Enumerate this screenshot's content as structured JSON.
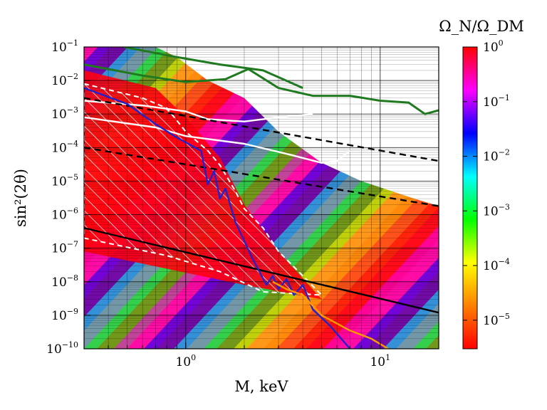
{
  "chart_data": {
    "type": "heatmap",
    "title": "",
    "xlabel": "M, keV",
    "ylabel": "sin²(2θ)",
    "xscale": "log",
    "yscale": "log",
    "xlim": [
      0.3,
      20
    ],
    "ylim": [
      1e-10,
      0.1
    ],
    "grid": true,
    "x_ticks": [
      {
        "value": 1,
        "base": "10",
        "exp": "0"
      },
      {
        "value": 10,
        "base": "10",
        "exp": "1"
      }
    ],
    "y_ticks": [
      {
        "value": 0.1,
        "base": "10",
        "exp": "−1"
      },
      {
        "value": 0.01,
        "base": "10",
        "exp": "−2"
      },
      {
        "value": 0.001,
        "base": "10",
        "exp": "−3"
      },
      {
        "value": 0.0001,
        "base": "10",
        "exp": "−4"
      },
      {
        "value": 1e-05,
        "base": "10",
        "exp": "−5"
      },
      {
        "value": 1e-06,
        "base": "10",
        "exp": "−6"
      },
      {
        "value": 1e-07,
        "base": "10",
        "exp": "−7"
      },
      {
        "value": 1e-08,
        "base": "10",
        "exp": "−8"
      },
      {
        "value": 1e-09,
        "base": "10",
        "exp": "−9"
      },
      {
        "value": 1e-10,
        "base": "10",
        "exp": "−10"
      }
    ],
    "colorbar": {
      "title": "Ω_N/Ω_DM",
      "scale": "log",
      "range": [
        3e-06,
        1
      ],
      "colormap": [
        "#ff0000",
        "#ff8000",
        "#ffff00",
        "#00ff00",
        "#00ffff",
        "#0000ff",
        "#ff00ff",
        "#ff0000"
      ],
      "ticks": [
        {
          "value": 1,
          "base": "10",
          "exp": "0"
        },
        {
          "value": 0.1,
          "base": "10",
          "exp": "−1"
        },
        {
          "value": 0.01,
          "base": "10",
          "exp": "−2"
        },
        {
          "value": 0.001,
          "base": "10",
          "exp": "−3"
        },
        {
          "value": 0.0001,
          "base": "10",
          "exp": "−4"
        },
        {
          "value": 1e-05,
          "base": "10",
          "exp": "−5"
        }
      ]
    },
    "colors": {
      "dark_green": "#1f7a1f",
      "blue": "#2222cc",
      "orange": "#ff9900",
      "white": "#ffffff",
      "black": "#000000"
    },
    "curves": [
      {
        "id": "green-upper",
        "style": "solid",
        "color": "dark_green",
        "points": [
          [
            0.48,
            0.1
          ],
          [
            0.9,
            0.05
          ],
          [
            1.5,
            0.03
          ],
          [
            2.5,
            0.02
          ],
          [
            4,
            0.006
          ]
        ]
      },
      {
        "id": "green-lower",
        "style": "solid",
        "color": "dark_green",
        "points": [
          [
            0.3,
            0.03
          ],
          [
            0.6,
            0.014
          ],
          [
            1,
            0.009
          ],
          [
            1.6,
            0.011
          ],
          [
            2.1,
            0.022
          ],
          [
            3,
            0.006
          ],
          [
            4.5,
            0.0035
          ],
          [
            7,
            0.0035
          ],
          [
            10,
            0.0025
          ],
          [
            14,
            0.0022
          ],
          [
            17,
            0.001
          ],
          [
            20,
            0.0013
          ]
        ]
      },
      {
        "id": "white-upper",
        "style": "solid",
        "color": "white",
        "points": [
          [
            0.3,
            0.0025
          ],
          [
            0.6,
            0.0018
          ],
          [
            1,
            0.0012
          ],
          [
            1.3,
            0.0007
          ],
          [
            2,
            0.0006
          ],
          [
            3,
            0.0008
          ],
          [
            4.5,
            0.001
          ]
        ]
      },
      {
        "id": "white-lower",
        "style": "solid",
        "color": "white",
        "points": [
          [
            0.3,
            0.0008
          ],
          [
            0.7,
            0.0004
          ],
          [
            1,
            0.00022
          ],
          [
            2,
            0.00013
          ],
          [
            3.5,
            6e-05
          ],
          [
            5,
            3.5e-05
          ],
          [
            6,
            4e-05
          ],
          [
            7,
            8e-05
          ]
        ]
      },
      {
        "id": "dashed-upper",
        "style": "dashed",
        "color": "black",
        "points": [
          [
            0.3,
            0.003
          ],
          [
            20,
            4e-05
          ]
        ]
      },
      {
        "id": "dashed-lower",
        "style": "dashed",
        "color": "black",
        "points": [
          [
            0.3,
            0.0001
          ],
          [
            20,
            1.8e-06
          ]
        ]
      },
      {
        "id": "black-solid",
        "style": "solid",
        "color": "black",
        "points": [
          [
            0.3,
            4e-07
          ],
          [
            20,
            1.2e-09
          ]
        ]
      },
      {
        "id": "blue-curve",
        "style": "solid",
        "color": "blue",
        "points": [
          [
            0.3,
            0.006
          ],
          [
            0.5,
            0.002
          ],
          [
            0.7,
            0.0005
          ],
          [
            0.9,
            0.0002
          ],
          [
            1.2,
            8e-05
          ],
          [
            1.3,
            8e-06
          ],
          [
            1.4,
            2e-05
          ],
          [
            1.5,
            3e-06
          ],
          [
            1.6,
            6e-06
          ],
          [
            1.8,
            6e-07
          ],
          [
            2.2,
            5e-08
          ],
          [
            2.6,
            8e-09
          ],
          [
            2.8,
            1.5e-08
          ],
          [
            3,
            6e-09
          ],
          [
            3.3,
            1.2e-08
          ],
          [
            3.6,
            4e-09
          ],
          [
            4,
            8e-09
          ],
          [
            4.5,
            1.5e-09
          ],
          [
            5.5,
            5e-10
          ],
          [
            7,
            1e-10
          ]
        ]
      },
      {
        "id": "orange-curve",
        "style": "solid",
        "color": "orange",
        "points": [
          [
            2.8,
            1e-08
          ],
          [
            3.3,
            6e-09
          ],
          [
            4,
            4e-09
          ],
          [
            5,
            1e-09
          ],
          [
            7,
            3.5e-10
          ],
          [
            9,
            2e-10
          ],
          [
            11,
            1e-10
          ]
        ]
      }
    ],
    "hatched_region": {
      "boundary_color": "white",
      "boundary_style": "dashed",
      "polygon": [
        [
          0.3,
          0.008
        ],
        [
          0.6,
          0.003
        ],
        [
          0.8,
          0.0015
        ],
        [
          1,
          0.0003
        ],
        [
          1.3,
          8e-05
        ],
        [
          1.5,
          3e-05
        ],
        [
          1.8,
          5e-06
        ],
        [
          2,
          1.5e-06
        ],
        [
          2.5,
          4e-07
        ],
        [
          3,
          8e-08
        ],
        [
          4,
          1.5e-08
        ],
        [
          5,
          4e-09
        ],
        [
          2.5,
          5e-09
        ],
        [
          1.5,
          2e-08
        ],
        [
          0.8,
          6e-08
        ],
        [
          0.3,
          2e-07
        ]
      ]
    }
  }
}
